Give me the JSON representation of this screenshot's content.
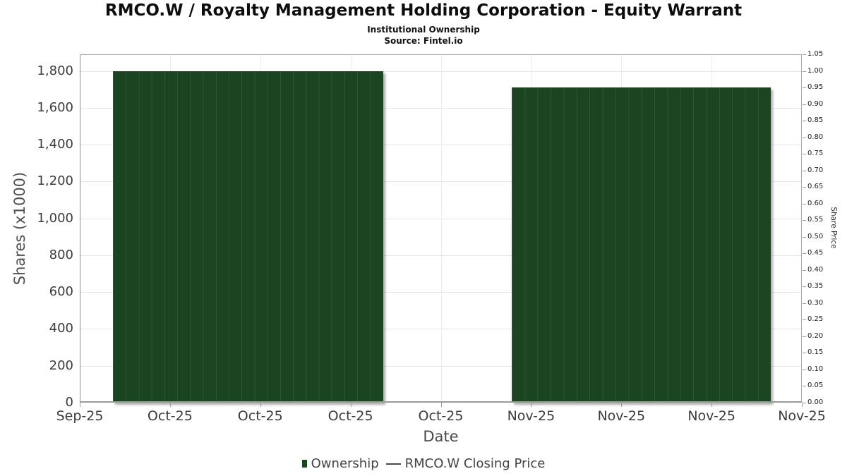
{
  "header": {
    "title": "RMCO.W / Royalty Management Holding Corporation - Equity Warrant",
    "subtitle": "Institutional Ownership",
    "source": "Source: Fintel.io"
  },
  "chart_data": {
    "type": "bar",
    "title": "RMCO.W / Royalty Management Holding Corporation - Equity Warrant",
    "subtitle": "Institutional Ownership",
    "source": "Source: Fintel.io",
    "xlabel": "Date",
    "ylabel_left": "Shares (x1000)",
    "ylabel_right": "Share Price",
    "x_tick_labels": [
      "Sep-25",
      "Oct-25",
      "Oct-25",
      "Oct-25",
      "Oct-25",
      "Nov-25",
      "Nov-25",
      "Nov-25",
      "Nov-25"
    ],
    "ylim_left": [
      0,
      1890
    ],
    "yticks_left": [
      0,
      200,
      400,
      600,
      800,
      1000,
      1200,
      1400,
      1600,
      1800
    ],
    "ylim_right": [
      0,
      1.05
    ],
    "ytick_step_right": 0.05,
    "grid": true,
    "legend_position": "bottom",
    "series": [
      {
        "name": "Ownership",
        "type": "bar",
        "color": "#1b4421",
        "divider_color": "#2d5733",
        "segments": [
          {
            "x_start_frac": 0.046,
            "x_end_frac": 0.42,
            "value": 1800,
            "bar_count": 21
          },
          {
            "x_start_frac": 0.598,
            "x_end_frac": 0.957,
            "value": 1710,
            "bar_count": 20
          }
        ]
      },
      {
        "name": "RMCO.W Closing Price",
        "type": "line",
        "color": "#4a4a4a",
        "points": []
      }
    ],
    "legend": [
      {
        "label": "Ownership",
        "marker": "square",
        "color": "#1b4421"
      },
      {
        "label": "RMCO.W Closing Price",
        "marker": "line",
        "color": "#4a4a4a"
      }
    ]
  }
}
